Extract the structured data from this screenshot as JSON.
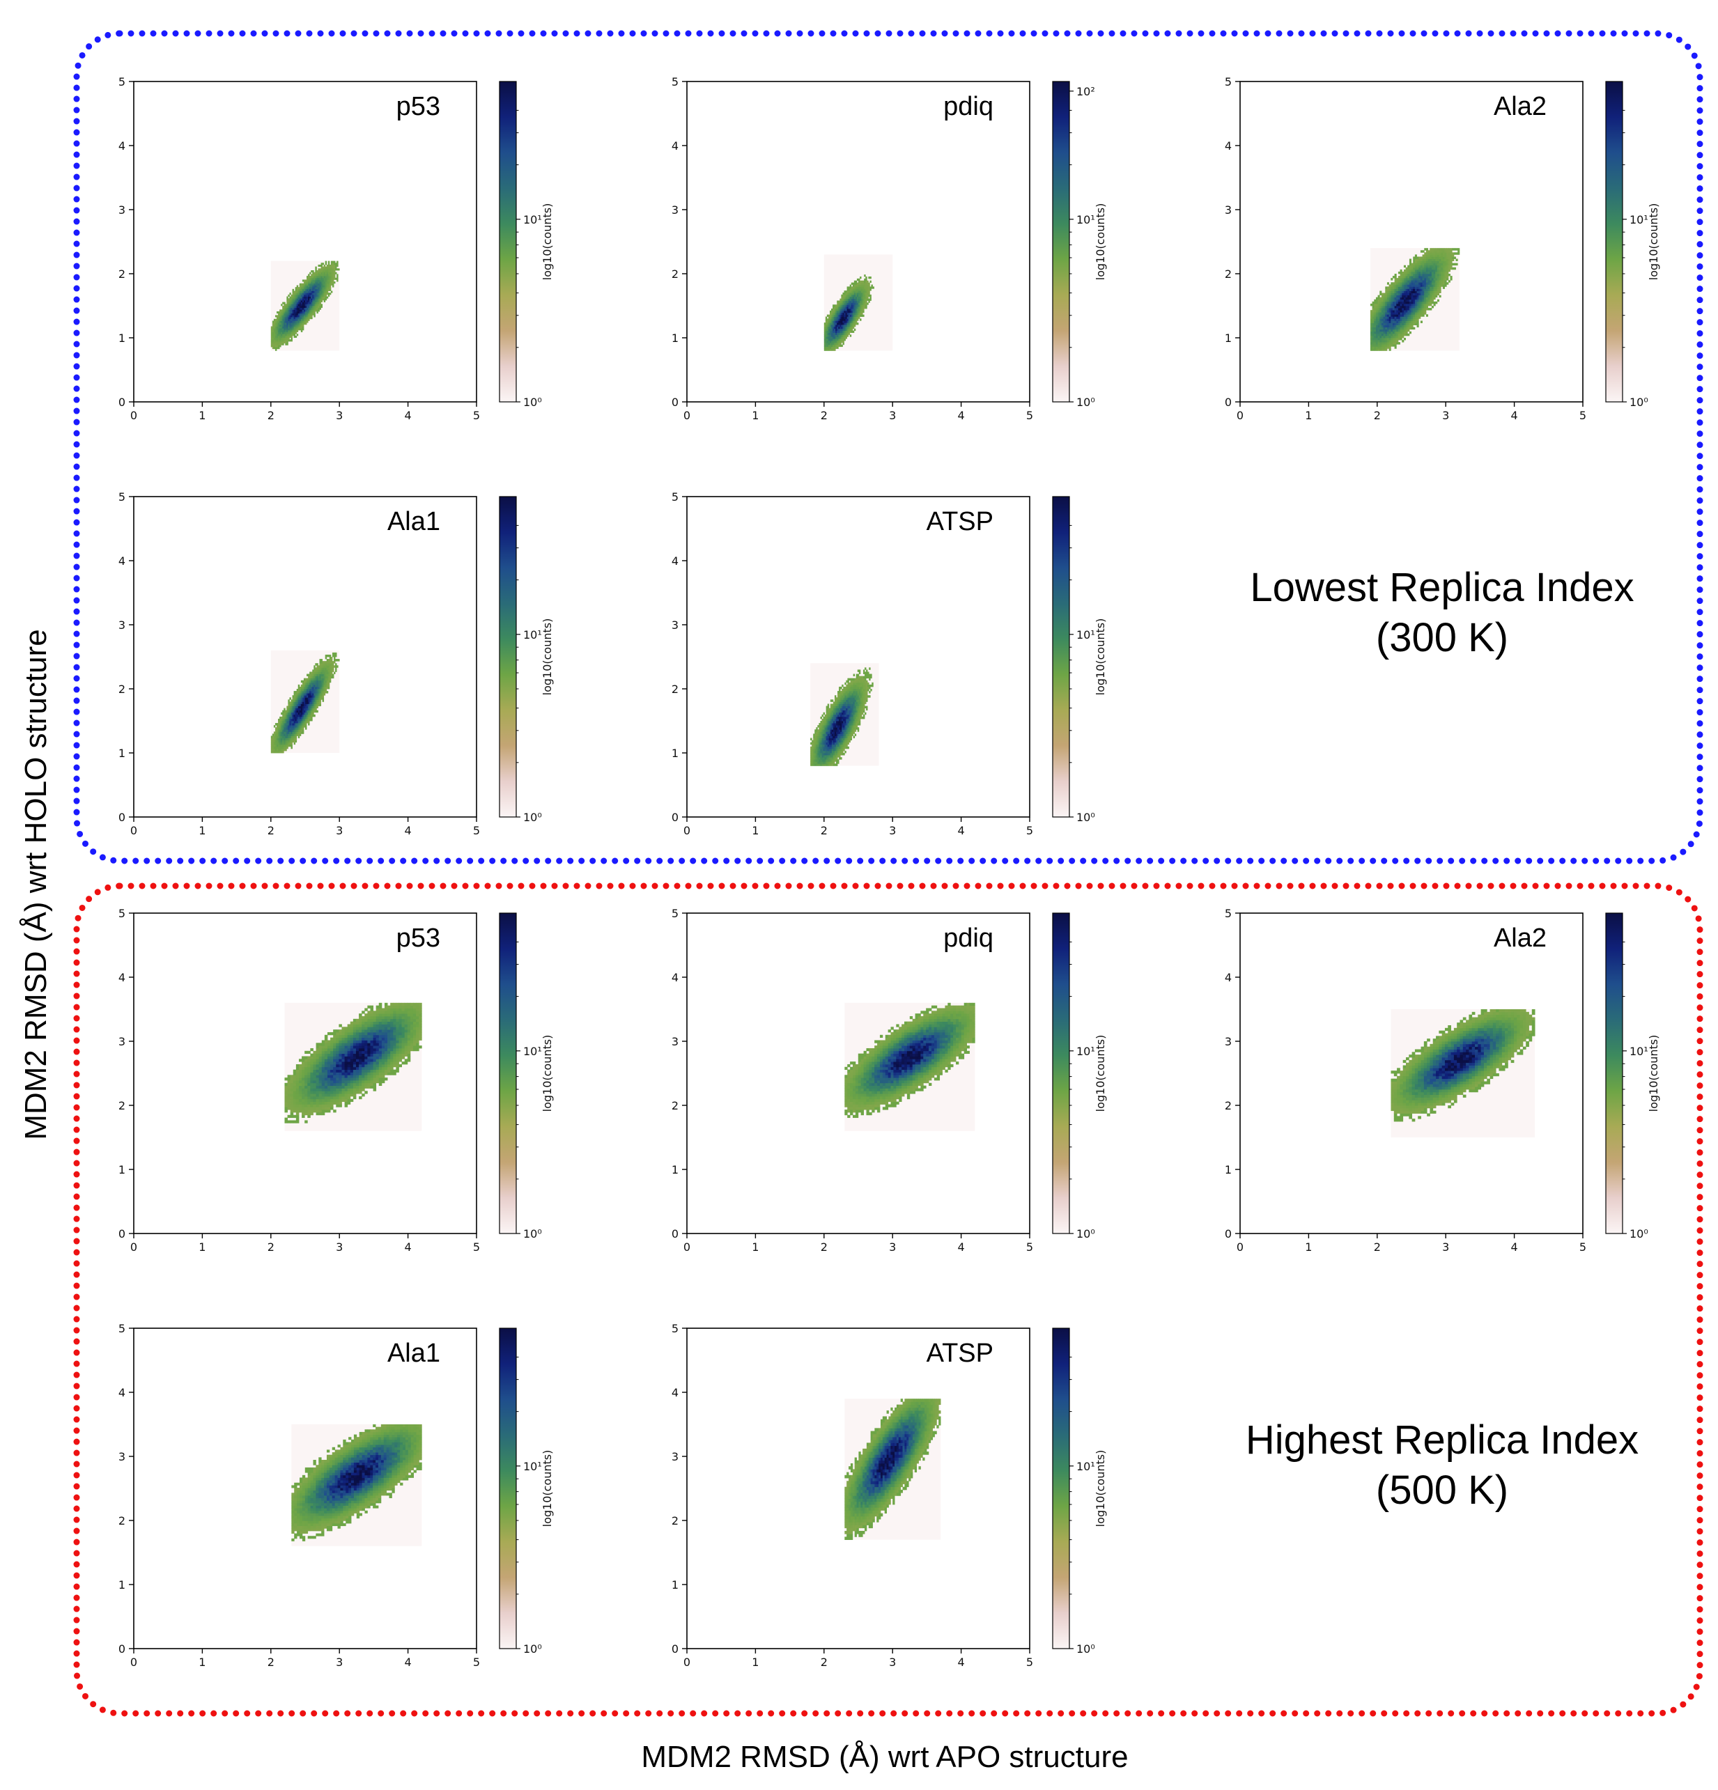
{
  "figure": {
    "ylabel": "MDM2 RMSD (Å) wrt HOLO structure",
    "xlabel": "MDM2 RMSD (Å) wrt APO structure",
    "colorbar_label": "log10(counts)",
    "colors": {
      "lowest_box_border": "#1a1aff",
      "highest_box_border": "#ee1111",
      "colormap": [
        "#fbf5f5",
        "#e8cfcc",
        "#c4a574",
        "#a8aa55",
        "#6ea546",
        "#3d8a5e",
        "#2a6b78",
        "#1f4e8c",
        "#10217a",
        "#0b0f45"
      ]
    },
    "groups": [
      {
        "key": "lowest",
        "caption_line1": "Lowest Replica Index",
        "caption_line2": "(300 K)",
        "panels": [
          {
            "label": "p53",
            "colorbar_mid_tick": "10¹",
            "colorbar_top_tick": "",
            "colorbar_bottom_tick": "10⁰",
            "xlim": [
              0,
              5
            ],
            "ylim": [
              0,
              5
            ],
            "xticks": [
              "0",
              "1",
              "2",
              "3",
              "4",
              "5"
            ],
            "yticks": [
              "0",
              "1",
              "2",
              "3",
              "4",
              "5"
            ],
            "chart_data": {
              "type": "heatmap",
              "distribution": {
                "center_x": 2.45,
                "center_y": 1.5,
                "sd_x": 0.17,
                "sd_y": 0.22,
                "correlation": 0.85
              },
              "x_range": [
                2.0,
                3.0
              ],
              "y_range": [
                0.8,
                2.2
              ],
              "log_colorbar": true
            }
          },
          {
            "label": "pdiq",
            "colorbar_mid_tick": "10¹",
            "colorbar_top_tick": "10²",
            "colorbar_bottom_tick": "10⁰",
            "xlim": [
              0,
              5
            ],
            "ylim": [
              0,
              5
            ],
            "xticks": [
              "0",
              "1",
              "2",
              "3",
              "4",
              "5"
            ],
            "yticks": [
              "0",
              "1",
              "2",
              "3",
              "4",
              "5"
            ],
            "chart_data": {
              "type": "heatmap",
              "distribution": {
                "center_x": 2.28,
                "center_y": 1.3,
                "sd_x": 0.13,
                "sd_y": 0.2,
                "correlation": 0.8
              },
              "x_range": [
                2.0,
                3.0
              ],
              "y_range": [
                0.8,
                2.3
              ],
              "log_colorbar": true
            }
          },
          {
            "label": "Ala2",
            "colorbar_mid_tick": "10¹",
            "colorbar_top_tick": "",
            "colorbar_bottom_tick": "10⁰",
            "xlim": [
              0,
              5
            ],
            "ylim": [
              0,
              5
            ],
            "xticks": [
              "0",
              "1",
              "2",
              "3",
              "4",
              "5"
            ],
            "yticks": [
              "0",
              "1",
              "2",
              "3",
              "4",
              "5"
            ],
            "chart_data": {
              "type": "heatmap",
              "distribution": {
                "center_x": 2.4,
                "center_y": 1.55,
                "sd_x": 0.24,
                "sd_y": 0.3,
                "correlation": 0.82
              },
              "x_range": [
                1.9,
                3.2
              ],
              "y_range": [
                0.8,
                2.4
              ],
              "log_colorbar": true
            }
          },
          {
            "label": "Ala1",
            "colorbar_mid_tick": "10¹",
            "colorbar_top_tick": "",
            "colorbar_bottom_tick": "10⁰",
            "xlim": [
              0,
              5
            ],
            "ylim": [
              0,
              5
            ],
            "xticks": [
              "0",
              "1",
              "2",
              "3",
              "4",
              "5"
            ],
            "yticks": [
              "0",
              "1",
              "2",
              "3",
              "4",
              "5"
            ],
            "chart_data": {
              "type": "heatmap",
              "distribution": {
                "center_x": 2.45,
                "center_y": 1.7,
                "sd_x": 0.16,
                "sd_y": 0.26,
                "correlation": 0.88
              },
              "x_range": [
                2.0,
                3.0
              ],
              "y_range": [
                1.0,
                2.6
              ],
              "log_colorbar": true
            }
          },
          {
            "label": "ATSP",
            "colorbar_mid_tick": "10¹",
            "colorbar_top_tick": "",
            "colorbar_bottom_tick": "10⁰",
            "xlim": [
              0,
              5
            ],
            "ylim": [
              0,
              5
            ],
            "xticks": [
              "0",
              "1",
              "2",
              "3",
              "4",
              "5"
            ],
            "yticks": [
              "0",
              "1",
              "2",
              "3",
              "4",
              "5"
            ],
            "chart_data": {
              "type": "heatmap",
              "distribution": {
                "center_x": 2.2,
                "center_y": 1.4,
                "sd_x": 0.15,
                "sd_y": 0.27,
                "correlation": 0.78
              },
              "x_range": [
                1.8,
                2.8
              ],
              "y_range": [
                0.8,
                2.4
              ],
              "log_colorbar": true
            }
          }
        ]
      },
      {
        "key": "highest",
        "caption_line1": "Highest Replica Index",
        "caption_line2": "(500 K)",
        "panels": [
          {
            "label": "p53",
            "colorbar_mid_tick": "10¹",
            "colorbar_top_tick": "",
            "colorbar_bottom_tick": "10⁰",
            "xlim": [
              0,
              5
            ],
            "ylim": [
              0,
              5
            ],
            "xticks": [
              "0",
              "1",
              "2",
              "3",
              "4",
              "5"
            ],
            "yticks": [
              "0",
              "1",
              "2",
              "3",
              "4",
              "5"
            ],
            "chart_data": {
              "type": "heatmap",
              "distribution": {
                "center_x": 3.25,
                "center_y": 2.75,
                "sd_x": 0.36,
                "sd_y": 0.3,
                "correlation": 0.75
              },
              "x_range": [
                2.2,
                4.2
              ],
              "y_range": [
                1.6,
                3.6
              ],
              "log_colorbar": true
            }
          },
          {
            "label": "pdiq",
            "colorbar_mid_tick": "10¹",
            "colorbar_top_tick": "",
            "colorbar_bottom_tick": "10⁰",
            "xlim": [
              0,
              5
            ],
            "ylim": [
              0,
              5
            ],
            "xticks": [
              "0",
              "1",
              "2",
              "3",
              "4",
              "5"
            ],
            "yticks": [
              "0",
              "1",
              "2",
              "3",
              "4",
              "5"
            ],
            "chart_data": {
              "type": "heatmap",
              "distribution": {
                "center_x": 3.25,
                "center_y": 2.75,
                "sd_x": 0.35,
                "sd_y": 0.28,
                "correlation": 0.75
              },
              "x_range": [
                2.3,
                4.2
              ],
              "y_range": [
                1.6,
                3.6
              ],
              "log_colorbar": true
            }
          },
          {
            "label": "Ala2",
            "colorbar_mid_tick": "10¹",
            "colorbar_top_tick": "",
            "colorbar_bottom_tick": "10⁰",
            "xlim": [
              0,
              5
            ],
            "ylim": [
              0,
              5
            ],
            "xticks": [
              "0",
              "1",
              "2",
              "3",
              "4",
              "5"
            ],
            "yticks": [
              "0",
              "1",
              "2",
              "3",
              "4",
              "5"
            ],
            "chart_data": {
              "type": "heatmap",
              "distribution": {
                "center_x": 3.2,
                "center_y": 2.7,
                "sd_x": 0.36,
                "sd_y": 0.28,
                "correlation": 0.75
              },
              "x_range": [
                2.2,
                4.3
              ],
              "y_range": [
                1.5,
                3.5
              ],
              "log_colorbar": true
            }
          },
          {
            "label": "Ala1",
            "colorbar_mid_tick": "10¹",
            "colorbar_top_tick": "",
            "colorbar_bottom_tick": "10⁰",
            "xlim": [
              0,
              5
            ],
            "ylim": [
              0,
              5
            ],
            "xticks": [
              "0",
              "1",
              "2",
              "3",
              "4",
              "5"
            ],
            "yticks": [
              "0",
              "1",
              "2",
              "3",
              "4",
              "5"
            ],
            "chart_data": {
              "type": "heatmap",
              "distribution": {
                "center_x": 3.25,
                "center_y": 2.7,
                "sd_x": 0.37,
                "sd_y": 0.3,
                "correlation": 0.75
              },
              "x_range": [
                2.3,
                4.2
              ],
              "y_range": [
                1.6,
                3.5
              ],
              "log_colorbar": true
            }
          },
          {
            "label": "ATSP",
            "colorbar_mid_tick": "10¹",
            "colorbar_top_tick": "",
            "colorbar_bottom_tick": "10⁰",
            "xlim": [
              0,
              5
            ],
            "ylim": [
              0,
              5
            ],
            "xticks": [
              "0",
              "1",
              "2",
              "3",
              "4",
              "5"
            ],
            "yticks": [
              "0",
              "1",
              "2",
              "3",
              "4",
              "5"
            ],
            "chart_data": {
              "type": "heatmap",
              "distribution": {
                "center_x": 2.95,
                "center_y": 2.95,
                "sd_x": 0.25,
                "sd_y": 0.38,
                "correlation": 0.8
              },
              "x_range": [
                2.3,
                3.7
              ],
              "y_range": [
                1.7,
                3.9
              ],
              "log_colorbar": true
            }
          }
        ]
      }
    ]
  }
}
